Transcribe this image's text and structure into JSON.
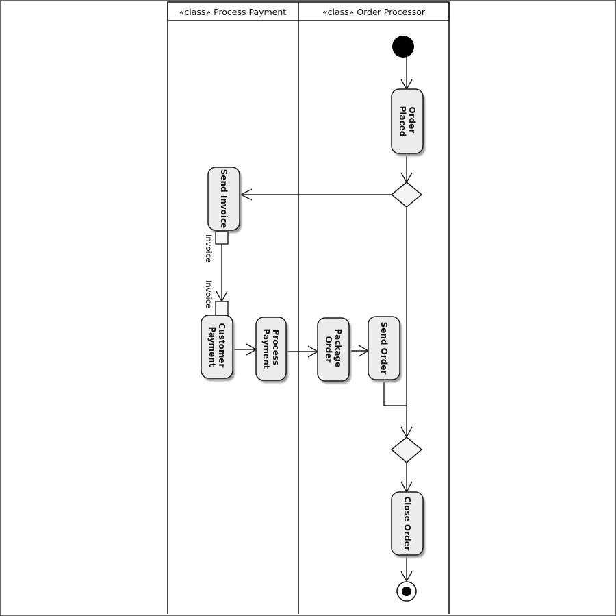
{
  "diagram": {
    "type": "uml-activity",
    "swimlanes": [
      {
        "id": "process-payment",
        "title": "«class» Process Payment"
      },
      {
        "id": "order-processor",
        "title": "«class» Order Processor"
      }
    ],
    "actions": {
      "order_placed": [
        "Order",
        "Placed"
      ],
      "send_invoice": [
        "Send Invoice"
      ],
      "customer_payment": [
        "Customer",
        "Payment"
      ],
      "process_payment": [
        "Process",
        "Payment"
      ],
      "package_order": [
        "Package",
        "Order"
      ],
      "send_order": [
        "Send Order"
      ],
      "close_order": [
        "Close Order"
      ]
    },
    "pins": {
      "invoice_out": "Invoice",
      "invoice_in": "Invoice"
    }
  }
}
